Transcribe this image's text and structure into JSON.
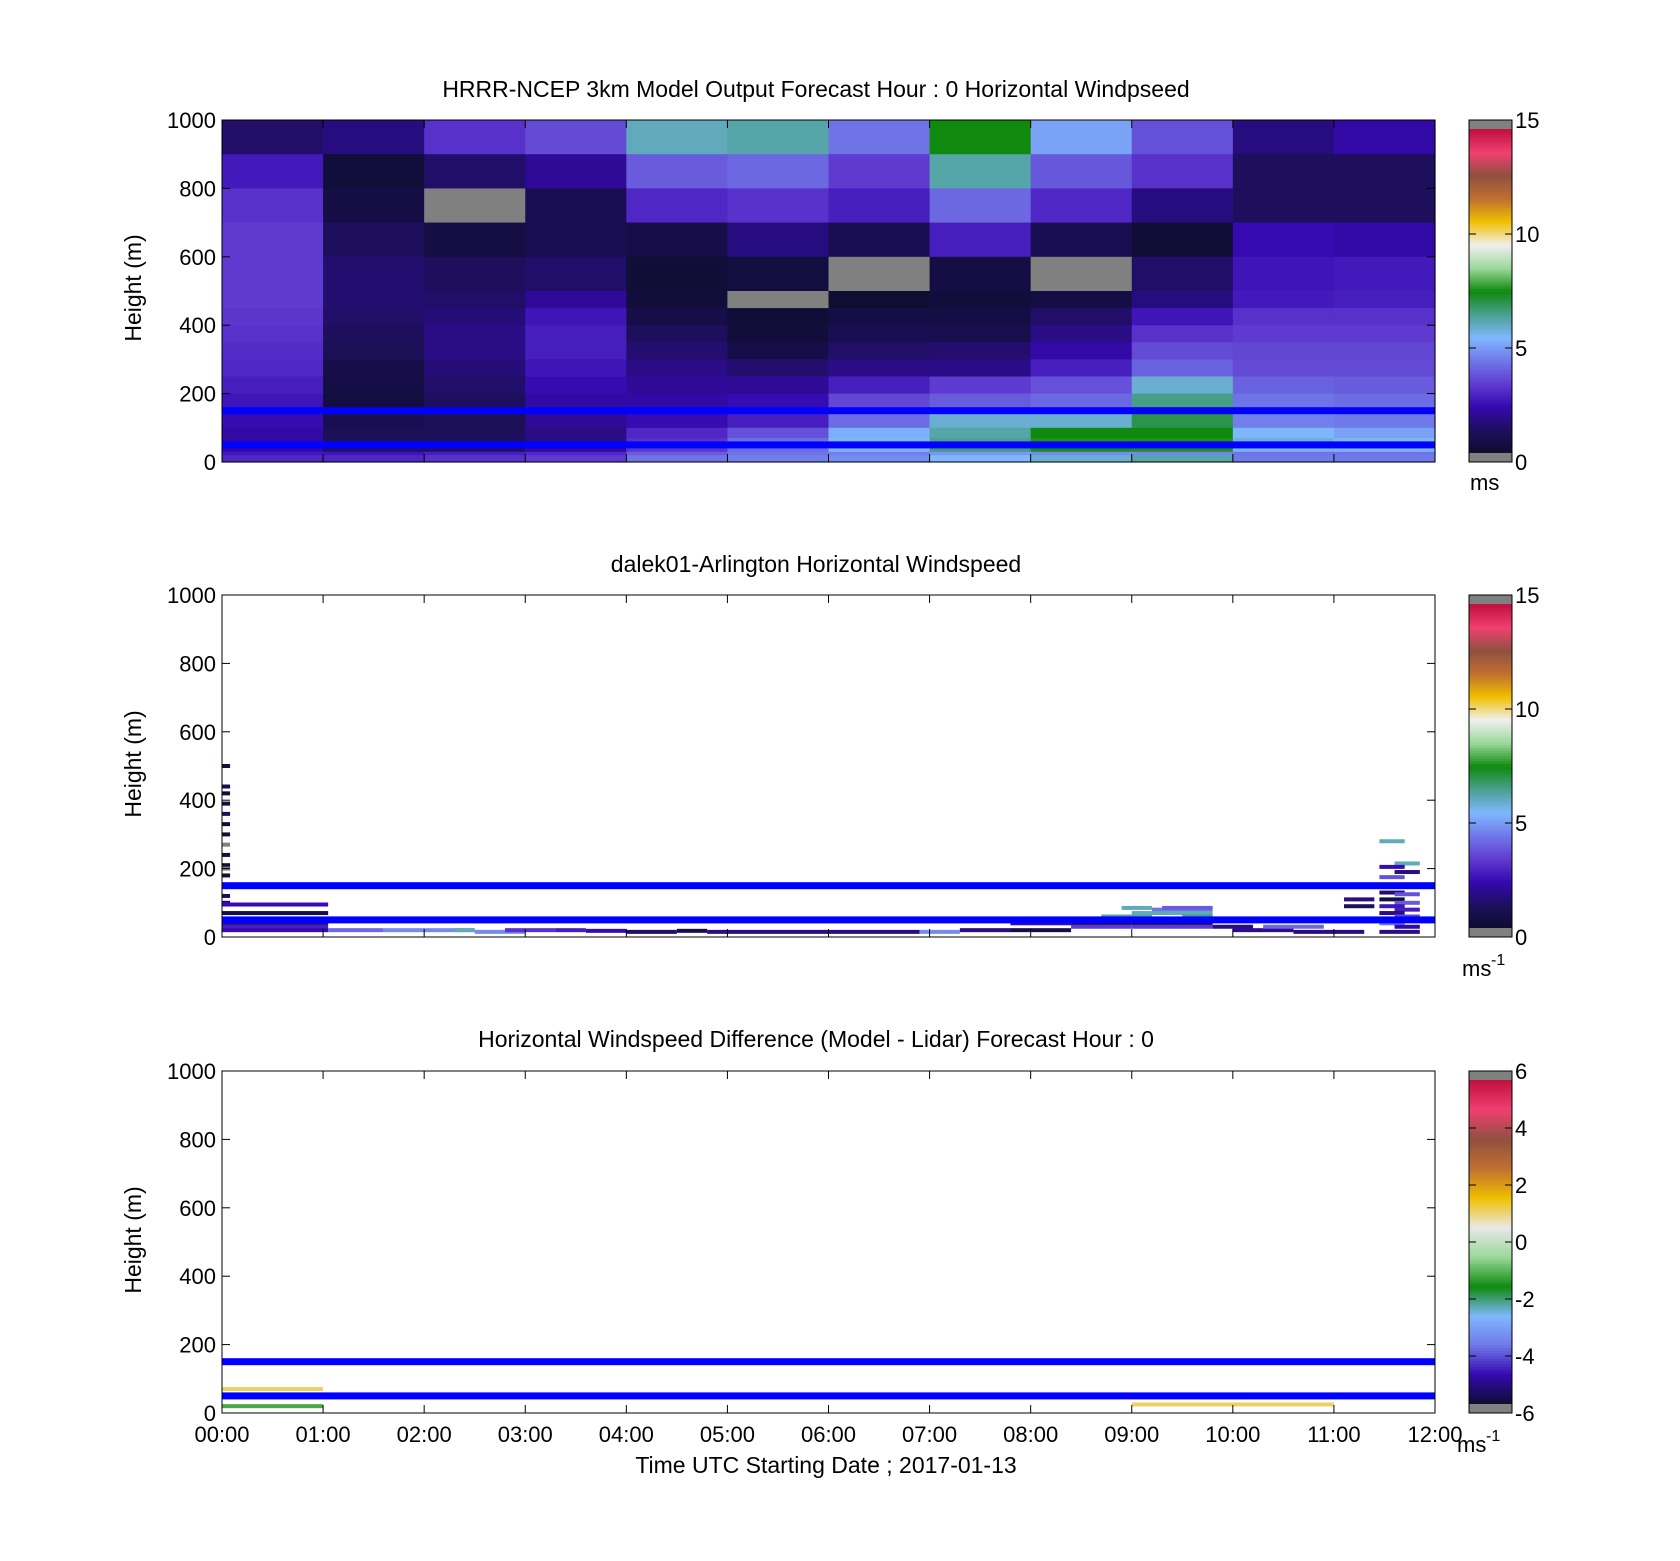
{
  "colors": {
    "reference_lines": "#0000ff",
    "missing": "#808080",
    "speed_colormap": [
      "#0d0d2e",
      "#1e0f5e",
      "#3508b0",
      "#5f3bd0",
      "#6f78e8",
      "#80b8ff",
      "#4aa090",
      "#0f8a0f",
      "#9ad89a",
      "#f0f0f0",
      "#f0c000",
      "#c07030",
      "#905040",
      "#f04070",
      "#c01040"
    ],
    "diff_colormap": [
      "#0d0d2e",
      "#3508b0",
      "#6f78e8",
      "#80b8ff",
      "#0f8a0f",
      "#9ad89a",
      "#e8e8e8",
      "#f0c000",
      "#c07030",
      "#905040",
      "#f04070",
      "#c01040"
    ]
  },
  "chart_data": [
    {
      "type": "heatmap",
      "title": "HRRR-NCEP 3km Model Output   Forecast Hour : 0 Horizontal Windpseed",
      "xlabel": "",
      "ylabel": "Height (m)",
      "xlim": [
        0,
        12
      ],
      "ylim": [
        0,
        1000
      ],
      "yticks": [
        "0",
        "200",
        "400",
        "600",
        "800",
        "1000"
      ],
      "show_xtick_labels": false,
      "grid": false,
      "colorbar": {
        "ticks": [
          "0",
          "5",
          "10",
          "15"
        ],
        "label": "ms",
        "exponent": "",
        "range": [
          0,
          15
        ]
      },
      "reference_lines_m": [
        150,
        50
      ],
      "heights_m": [
        1000,
        900,
        800,
        700,
        600,
        500,
        450,
        400,
        350,
        300,
        250,
        200,
        150,
        100,
        70,
        50,
        30,
        20
      ],
      "values": [
        [
          1.2,
          1.5,
          3.0,
          3.5,
          6.0,
          6.2,
          4.2,
          7.5,
          5.0,
          3.6,
          1.5,
          2.0
        ],
        [
          2.5,
          0.3,
          1.2,
          1.8,
          3.8,
          4.0,
          3.2,
          6.2,
          3.7,
          3.0,
          1.0,
          1.0
        ],
        [
          3.0,
          0.5,
          -1,
          0.8,
          2.8,
          3.0,
          2.6,
          4.0,
          2.8,
          1.5,
          1.0,
          1.0
        ],
        [
          3.2,
          1.0,
          0.5,
          0.8,
          0.6,
          1.5,
          0.8,
          2.6,
          0.8,
          0.2,
          2.2,
          2.0
        ],
        [
          3.2,
          1.3,
          1.0,
          1.2,
          0.2,
          0.4,
          -1,
          0.5,
          -1,
          1.2,
          2.4,
          2.5
        ],
        [
          3.2,
          1.3,
          1.2,
          1.8,
          0.3,
          -1,
          0.1,
          0.3,
          0.5,
          1.5,
          2.5,
          2.6
        ],
        [
          3.1,
          1.2,
          1.4,
          2.4,
          0.6,
          0.2,
          0.5,
          0.5,
          1.2,
          2.4,
          3.0,
          3.0
        ],
        [
          3.0,
          1.0,
          1.6,
          2.6,
          1.0,
          0.3,
          0.8,
          0.7,
          1.6,
          3.0,
          3.2,
          3.2
        ],
        [
          2.9,
          0.9,
          1.6,
          2.6,
          1.3,
          0.6,
          1.2,
          1.3,
          2.0,
          3.5,
          3.4,
          3.4
        ],
        [
          2.8,
          0.6,
          1.4,
          2.4,
          1.6,
          1.3,
          1.6,
          1.6,
          2.6,
          3.9,
          3.5,
          3.5
        ],
        [
          2.6,
          0.5,
          1.2,
          2.2,
          1.8,
          1.8,
          2.6,
          3.2,
          3.6,
          5.8,
          3.9,
          3.8
        ],
        [
          2.4,
          0.4,
          1.0,
          2.0,
          2.0,
          2.2,
          3.4,
          3.8,
          4.0,
          6.5,
          4.2,
          4.1
        ],
        [
          2.2,
          0.8,
          0.9,
          1.8,
          2.2,
          2.6,
          4.1,
          5.8,
          5.8,
          7.0,
          4.4,
          4.3
        ],
        [
          2.0,
          0.9,
          1.0,
          1.6,
          2.8,
          3.6,
          5.2,
          6.2,
          7.5,
          7.5,
          5.4,
          5.0
        ],
        [
          2.0,
          1.0,
          1.0,
          1.6,
          3.0,
          4.1,
          5.4,
          6.4,
          7.6,
          7.6,
          5.7,
          5.4
        ],
        [
          2.1,
          1.2,
          1.2,
          1.9,
          3.1,
          4.1,
          5.3,
          6.6,
          7.4,
          7.3,
          5.5,
          5.3
        ],
        [
          2.5,
          2.4,
          2.6,
          2.8,
          3.8,
          4.2,
          4.4,
          4.8,
          4.6,
          4.5,
          4.2,
          4.2
        ],
        [
          2.8,
          2.8,
          3.0,
          3.2,
          4.2,
          4.4,
          4.6,
          5.4,
          5.8,
          6.2,
          4.3,
          4.3
        ]
      ]
    },
    {
      "type": "heatmap",
      "title": "dalek01-Arlington  Horizontal Windspeed",
      "xlabel": "",
      "ylabel": "Height (m)",
      "xlim": [
        0,
        12
      ],
      "ylim": [
        0,
        1000
      ],
      "yticks": [
        "0",
        "200",
        "400",
        "600",
        "800",
        "1000"
      ],
      "show_xtick_labels": false,
      "grid": false,
      "colorbar": {
        "ticks": [
          "0",
          "5",
          "10",
          "15"
        ],
        "label": "ms",
        "exponent": "-1",
        "range": [
          0,
          15
        ]
      },
      "reference_lines_m": [
        150,
        50
      ],
      "segments": [
        {
          "x0": 0.0,
          "x1": 0.08,
          "y": 500,
          "v": 0.4
        },
        {
          "x0": 0.0,
          "x1": 0.08,
          "y": 440,
          "v": 0.8
        },
        {
          "x0": 0.0,
          "x1": 0.08,
          "y": 420,
          "v": 0.3
        },
        {
          "x0": 0.0,
          "x1": 0.08,
          "y": 390,
          "v": 0.2
        },
        {
          "x0": 0.0,
          "x1": 0.08,
          "y": 360,
          "v": 1.0
        },
        {
          "x0": 0.0,
          "x1": 0.08,
          "y": 330,
          "v": 0.2
        },
        {
          "x0": 0.0,
          "x1": 0.08,
          "y": 300,
          "v": 0.3
        },
        {
          "x0": 0.0,
          "x1": 0.08,
          "y": 270,
          "v": -1
        },
        {
          "x0": 0.0,
          "x1": 0.08,
          "y": 240,
          "v": 0.4
        },
        {
          "x0": 0.0,
          "x1": 0.08,
          "y": 210,
          "v": 0.2
        },
        {
          "x0": 0.0,
          "x1": 0.08,
          "y": 200,
          "v": -1
        },
        {
          "x0": 0.0,
          "x1": 0.08,
          "y": 180,
          "v": 0.5
        },
        {
          "x0": 0.0,
          "x1": 0.08,
          "y": 120,
          "v": 0.9
        },
        {
          "x0": 0.0,
          "x1": 0.08,
          "y": 100,
          "v": 1.5
        },
        {
          "x0": 0.0,
          "x1": 1.05,
          "y": 95,
          "v": 2.2
        },
        {
          "x0": 0.0,
          "x1": 1.05,
          "y": 70,
          "v": 0.6
        },
        {
          "x0": 0.0,
          "x1": 1.05,
          "y": 40,
          "v": 1.6
        },
        {
          "x0": 0.0,
          "x1": 1.05,
          "y": 30,
          "v": 2.6
        },
        {
          "x0": 0.0,
          "x1": 1.05,
          "y": 20,
          "v": 2.2
        },
        {
          "x0": 1.05,
          "x1": 1.6,
          "y": 20,
          "v": 4.0
        },
        {
          "x0": 1.6,
          "x1": 2.5,
          "y": 20,
          "v": 4.6
        },
        {
          "x0": 2.3,
          "x1": 2.5,
          "y": 20,
          "v": 6.0
        },
        {
          "x0": 2.5,
          "x1": 3.0,
          "y": 15,
          "v": 4.6
        },
        {
          "x0": 2.8,
          "x1": 3.3,
          "y": 20,
          "v": 3.0
        },
        {
          "x0": 3.3,
          "x1": 3.6,
          "y": 20,
          "v": 2.6
        },
        {
          "x0": 3.6,
          "x1": 4.0,
          "y": 18,
          "v": 2.2
        },
        {
          "x0": 4.0,
          "x1": 4.5,
          "y": 15,
          "v": 1.2
        },
        {
          "x0": 4.5,
          "x1": 4.8,
          "y": 18,
          "v": 0.6
        },
        {
          "x0": 4.8,
          "x1": 6.9,
          "y": 15,
          "v": 1.6
        },
        {
          "x0": 6.9,
          "x1": 7.3,
          "y": 15,
          "v": 4.6
        },
        {
          "x0": 7.3,
          "x1": 7.8,
          "y": 20,
          "v": 1.6
        },
        {
          "x0": 7.8,
          "x1": 8.4,
          "y": 20,
          "v": 0.6
        },
        {
          "x0": 7.8,
          "x1": 8.4,
          "y": 40,
          "v": 2.2
        },
        {
          "x0": 8.0,
          "x1": 8.6,
          "y": 50,
          "v": 1.2
        },
        {
          "x0": 8.4,
          "x1": 9.0,
          "y": 40,
          "v": 0.6
        },
        {
          "x0": 8.4,
          "x1": 9.0,
          "y": 30,
          "v": 3.2
        },
        {
          "x0": 8.7,
          "x1": 9.2,
          "y": 60,
          "v": 6.2
        },
        {
          "x0": 8.9,
          "x1": 9.2,
          "y": 85,
          "v": 6.0
        },
        {
          "x0": 9.2,
          "x1": 9.8,
          "y": 80,
          "v": 4.2
        },
        {
          "x0": 9.0,
          "x1": 9.8,
          "y": 70,
          "v": 6.0
        },
        {
          "x0": 9.0,
          "x1": 9.8,
          "y": 50,
          "v": 3.6
        },
        {
          "x0": 9.0,
          "x1": 9.8,
          "y": 40,
          "v": 0.6
        },
        {
          "x0": 9.0,
          "x1": 9.8,
          "y": 30,
          "v": 3.2
        },
        {
          "x0": 9.3,
          "x1": 9.8,
          "y": 85,
          "v": 3.8
        },
        {
          "x0": 9.5,
          "x1": 9.8,
          "y": 60,
          "v": 6.5
        },
        {
          "x0": 9.8,
          "x1": 10.2,
          "y": 30,
          "v": 1.6
        },
        {
          "x0": 10.0,
          "x1": 10.6,
          "y": 20,
          "v": 1.8
        },
        {
          "x0": 10.3,
          "x1": 10.9,
          "y": 30,
          "v": 4.0
        },
        {
          "x0": 10.6,
          "x1": 11.3,
          "y": 15,
          "v": 1.6
        },
        {
          "x0": 11.1,
          "x1": 11.4,
          "y": 110,
          "v": 1.6
        },
        {
          "x0": 11.1,
          "x1": 11.4,
          "y": 90,
          "v": 1.0
        },
        {
          "x0": 11.1,
          "x1": 11.4,
          "y": 50,
          "v": 4.0
        },
        {
          "x0": 11.45,
          "x1": 11.7,
          "y": 280,
          "v": 6.0
        },
        {
          "x0": 11.6,
          "x1": 11.85,
          "y": 215,
          "v": 6.0
        },
        {
          "x0": 11.45,
          "x1": 11.7,
          "y": 205,
          "v": 2.2
        },
        {
          "x0": 11.6,
          "x1": 11.85,
          "y": 190,
          "v": 1.6
        },
        {
          "x0": 11.45,
          "x1": 11.7,
          "y": 175,
          "v": 3.6
        },
        {
          "x0": 11.6,
          "x1": 11.85,
          "y": 150,
          "v": 3.2
        },
        {
          "x0": 11.45,
          "x1": 11.7,
          "y": 130,
          "v": 1.2
        },
        {
          "x0": 11.6,
          "x1": 11.85,
          "y": 125,
          "v": 3.6
        },
        {
          "x0": 11.45,
          "x1": 11.7,
          "y": 110,
          "v": 0.4
        },
        {
          "x0": 11.6,
          "x1": 11.85,
          "y": 100,
          "v": 3.8
        },
        {
          "x0": 11.45,
          "x1": 11.7,
          "y": 90,
          "v": 2.4
        },
        {
          "x0": 11.6,
          "x1": 11.85,
          "y": 80,
          "v": 2.6
        },
        {
          "x0": 11.45,
          "x1": 11.7,
          "y": 70,
          "v": 1.6
        },
        {
          "x0": 11.6,
          "x1": 11.85,
          "y": 60,
          "v": 3.4
        },
        {
          "x0": 11.45,
          "x1": 11.7,
          "y": 40,
          "v": 4.2
        },
        {
          "x0": 11.6,
          "x1": 11.85,
          "y": 30,
          "v": 2.0
        },
        {
          "x0": 11.45,
          "x1": 11.85,
          "y": 15,
          "v": 1.6
        }
      ]
    },
    {
      "type": "heatmap",
      "title": "Horizontal Windspeed Difference (Model - Lidar) Forecast Hour : 0",
      "xlabel": "Time UTC  Starting Date ; 2017-01-13",
      "ylabel": "Height (m)",
      "xlim": [
        0,
        12
      ],
      "ylim": [
        0,
        1000
      ],
      "xticks": [
        "00:00",
        "01:00",
        "02:00",
        "03:00",
        "04:00",
        "05:00",
        "06:00",
        "07:00",
        "08:00",
        "09:00",
        "10:00",
        "11:00",
        "12:00"
      ],
      "yticks": [
        "0",
        "200",
        "400",
        "600",
        "800",
        "1000"
      ],
      "show_xtick_labels": true,
      "grid": false,
      "colorbar": {
        "ticks": [
          "-6",
          "-4",
          "-2",
          "0",
          "2",
          "4",
          "6"
        ],
        "label": "ms",
        "exponent": "-1",
        "range": [
          -6,
          6
        ]
      },
      "reference_lines_m": [
        150,
        50
      ],
      "segments": [
        {
          "x0": 0.0,
          "x1": 1.0,
          "y": 70,
          "v": 1.2
        },
        {
          "x0": 0.0,
          "x1": 1.0,
          "y": 20,
          "v": -1.2
        },
        {
          "x0": 9.0,
          "x1": 11.0,
          "y": 25,
          "v": 1.2
        }
      ]
    }
  ]
}
